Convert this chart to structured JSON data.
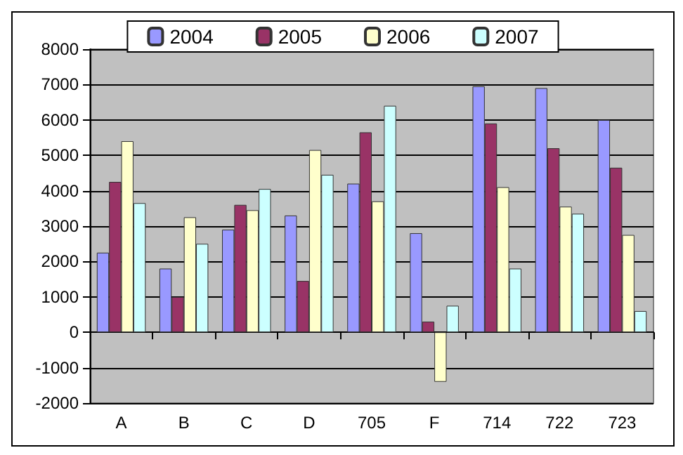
{
  "chart_data": {
    "type": "bar",
    "categories": [
      "A",
      "B",
      "C",
      "D",
      "705",
      "F",
      "714",
      "722",
      "723"
    ],
    "series": [
      {
        "name": "2004",
        "color": "#9999ff",
        "values": [
          2250,
          1800,
          2900,
          3300,
          4200,
          2800,
          6950,
          6900,
          6000
        ]
      },
      {
        "name": "2005",
        "color": "#993366",
        "values": [
          4250,
          1000,
          3600,
          1450,
          5650,
          300,
          5900,
          5200,
          4650
        ]
      },
      {
        "name": "2006",
        "color": "#ffffcc",
        "values": [
          5400,
          3250,
          3450,
          5150,
          3700,
          -1400,
          4100,
          3550,
          2750
        ]
      },
      {
        "name": "2007",
        "color": "#ccffff",
        "values": [
          3650,
          2500,
          4050,
          4450,
          6400,
          750,
          1800,
          3350,
          600
        ]
      }
    ],
    "ylim": [
      -2000,
      8000
    ],
    "yticks": [
      -2000,
      -1000,
      0,
      1000,
      2000,
      3000,
      4000,
      5000,
      6000,
      7000,
      8000
    ],
    "grid": "y",
    "legend": "top"
  }
}
